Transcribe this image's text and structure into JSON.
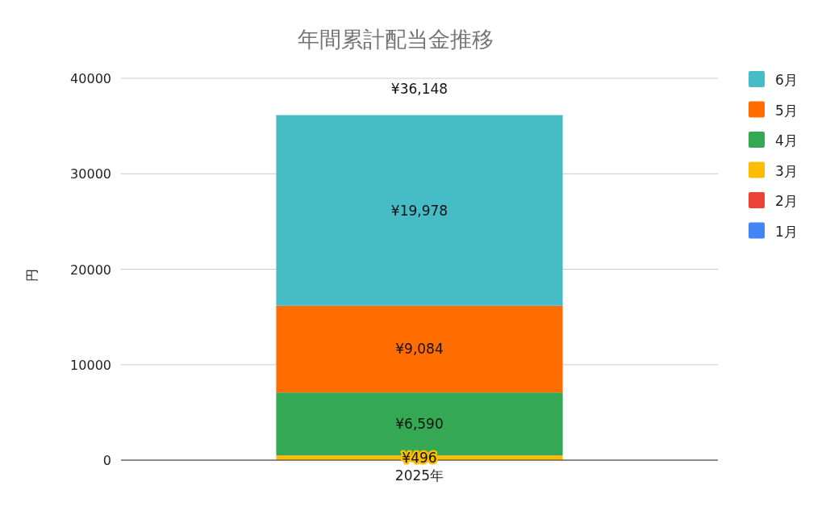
{
  "chart_data": {
    "type": "bar",
    "stacked": true,
    "title": "年間累計配当金推移",
    "ylabel": "円",
    "categories": [
      "2025年"
    ],
    "series": [
      {
        "name": "1月",
        "color": "#4285f4",
        "values": [
          0
        ],
        "value_labels": [
          null
        ]
      },
      {
        "name": "2月",
        "color": "#ea4335",
        "values": [
          0
        ],
        "value_labels": [
          null
        ]
      },
      {
        "name": "3月",
        "color": "#fbbc04",
        "values": [
          496
        ],
        "value_labels": [
          "¥496"
        ]
      },
      {
        "name": "4月",
        "color": "#34a853",
        "values": [
          6590
        ],
        "value_labels": [
          "¥6,590"
        ]
      },
      {
        "name": "5月",
        "color": "#ff6d01",
        "values": [
          9084
        ],
        "value_labels": [
          "¥9,084"
        ]
      },
      {
        "name": "6月",
        "color": "#46bdc6",
        "values": [
          19978
        ],
        "value_labels": [
          "¥19,978"
        ]
      }
    ],
    "totals": [
      "¥36,148"
    ],
    "ylim": [
      0,
      40000
    ],
    "yticks": [
      0,
      10000,
      20000,
      30000,
      40000
    ],
    "grid": "y",
    "legend": "right"
  }
}
